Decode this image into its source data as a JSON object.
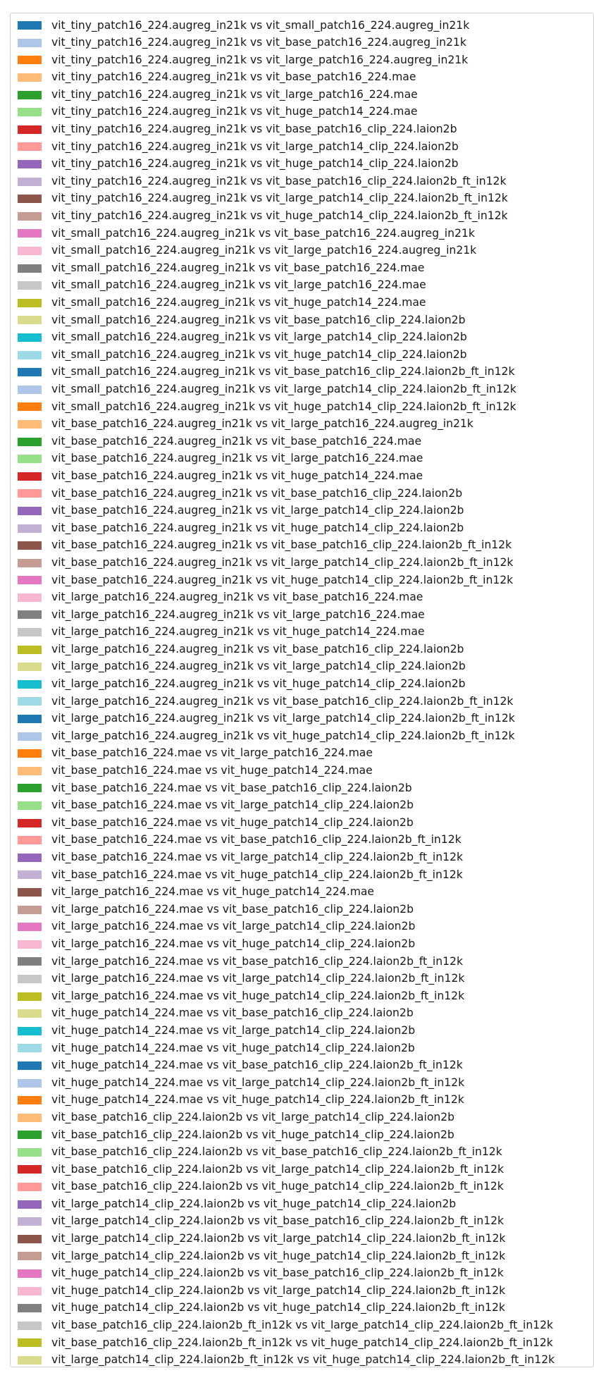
{
  "chart_data": {
    "type": "bar",
    "legend_placement": "top-left",
    "palette": [
      "#1f77b4",
      "#aec7e8",
      "#ff7f0e",
      "#ffbb78",
      "#2ca02c",
      "#98df8a",
      "#d62728",
      "#ff9896",
      "#9467bd",
      "#c5b0d5",
      "#8c564b",
      "#c49c94",
      "#e377c2",
      "#f7b6d2",
      "#7f7f7f",
      "#c7c7c7",
      "#bcbd22",
      "#dbdb8d",
      "#17becf",
      "#9edae5"
    ],
    "legend": [
      "vit_tiny_patch16_224.augreg_in21k vs vit_small_patch16_224.augreg_in21k",
      "vit_tiny_patch16_224.augreg_in21k vs vit_base_patch16_224.augreg_in21k",
      "vit_tiny_patch16_224.augreg_in21k vs vit_large_patch16_224.augreg_in21k",
      "vit_tiny_patch16_224.augreg_in21k vs vit_base_patch16_224.mae",
      "vit_tiny_patch16_224.augreg_in21k vs vit_large_patch16_224.mae",
      "vit_tiny_patch16_224.augreg_in21k vs vit_huge_patch14_224.mae",
      "vit_tiny_patch16_224.augreg_in21k vs vit_base_patch16_clip_224.laion2b",
      "vit_tiny_patch16_224.augreg_in21k vs vit_large_patch14_clip_224.laion2b",
      "vit_tiny_patch16_224.augreg_in21k vs vit_huge_patch14_clip_224.laion2b",
      "vit_tiny_patch16_224.augreg_in21k vs vit_base_patch16_clip_224.laion2b_ft_in12k",
      "vit_tiny_patch16_224.augreg_in21k vs vit_large_patch14_clip_224.laion2b_ft_in12k",
      "vit_tiny_patch16_224.augreg_in21k vs vit_huge_patch14_clip_224.laion2b_ft_in12k",
      "vit_small_patch16_224.augreg_in21k vs vit_base_patch16_224.augreg_in21k",
      "vit_small_patch16_224.augreg_in21k vs vit_large_patch16_224.augreg_in21k",
      "vit_small_patch16_224.augreg_in21k vs vit_base_patch16_224.mae",
      "vit_small_patch16_224.augreg_in21k vs vit_large_patch16_224.mae",
      "vit_small_patch16_224.augreg_in21k vs vit_huge_patch14_224.mae",
      "vit_small_patch16_224.augreg_in21k vs vit_base_patch16_clip_224.laion2b",
      "vit_small_patch16_224.augreg_in21k vs vit_large_patch14_clip_224.laion2b",
      "vit_small_patch16_224.augreg_in21k vs vit_huge_patch14_clip_224.laion2b",
      "vit_small_patch16_224.augreg_in21k vs vit_base_patch16_clip_224.laion2b_ft_in12k",
      "vit_small_patch16_224.augreg_in21k vs vit_large_patch14_clip_224.laion2b_ft_in12k",
      "vit_small_patch16_224.augreg_in21k vs vit_huge_patch14_clip_224.laion2b_ft_in12k",
      "vit_base_patch16_224.augreg_in21k vs vit_large_patch16_224.augreg_in21k",
      "vit_base_patch16_224.augreg_in21k vs vit_base_patch16_224.mae",
      "vit_base_patch16_224.augreg_in21k vs vit_large_patch16_224.mae",
      "vit_base_patch16_224.augreg_in21k vs vit_huge_patch14_224.mae",
      "vit_base_patch16_224.augreg_in21k vs vit_base_patch16_clip_224.laion2b",
      "vit_base_patch16_224.augreg_in21k vs vit_large_patch14_clip_224.laion2b",
      "vit_base_patch16_224.augreg_in21k vs vit_huge_patch14_clip_224.laion2b",
      "vit_base_patch16_224.augreg_in21k vs vit_base_patch16_clip_224.laion2b_ft_in12k",
      "vit_base_patch16_224.augreg_in21k vs vit_large_patch14_clip_224.laion2b_ft_in12k",
      "vit_base_patch16_224.augreg_in21k vs vit_huge_patch14_clip_224.laion2b_ft_in12k",
      "vit_large_patch16_224.augreg_in21k vs vit_base_patch16_224.mae",
      "vit_large_patch16_224.augreg_in21k vs vit_large_patch16_224.mae",
      "vit_large_patch16_224.augreg_in21k vs vit_huge_patch14_224.mae",
      "vit_large_patch16_224.augreg_in21k vs vit_base_patch16_clip_224.laion2b",
      "vit_large_patch16_224.augreg_in21k vs vit_large_patch14_clip_224.laion2b",
      "vit_large_patch16_224.augreg_in21k vs vit_huge_patch14_clip_224.laion2b",
      "vit_large_patch16_224.augreg_in21k vs vit_base_patch16_clip_224.laion2b_ft_in12k",
      "vit_large_patch16_224.augreg_in21k vs vit_large_patch14_clip_224.laion2b_ft_in12k",
      "vit_large_patch16_224.augreg_in21k vs vit_huge_patch14_clip_224.laion2b_ft_in12k",
      "vit_base_patch16_224.mae vs vit_large_patch16_224.mae",
      "vit_base_patch16_224.mae vs vit_huge_patch14_224.mae",
      "vit_base_patch16_224.mae vs vit_base_patch16_clip_224.laion2b",
      "vit_base_patch16_224.mae vs vit_large_patch14_clip_224.laion2b",
      "vit_base_patch16_224.mae vs vit_huge_patch14_clip_224.laion2b",
      "vit_base_patch16_224.mae vs vit_base_patch16_clip_224.laion2b_ft_in12k",
      "vit_base_patch16_224.mae vs vit_large_patch14_clip_224.laion2b_ft_in12k",
      "vit_base_patch16_224.mae vs vit_huge_patch14_clip_224.laion2b_ft_in12k",
      "vit_large_patch16_224.mae vs vit_huge_patch14_224.mae",
      "vit_large_patch16_224.mae vs vit_base_patch16_clip_224.laion2b",
      "vit_large_patch16_224.mae vs vit_large_patch14_clip_224.laion2b",
      "vit_large_patch16_224.mae vs vit_huge_patch14_clip_224.laion2b",
      "vit_large_patch16_224.mae vs vit_base_patch16_clip_224.laion2b_ft_in12k",
      "vit_large_patch16_224.mae vs vit_large_patch14_clip_224.laion2b_ft_in12k",
      "vit_large_patch16_224.mae vs vit_huge_patch14_clip_224.laion2b_ft_in12k",
      "vit_huge_patch14_224.mae vs vit_base_patch16_clip_224.laion2b",
      "vit_huge_patch14_224.mae vs vit_large_patch14_clip_224.laion2b",
      "vit_huge_patch14_224.mae vs vit_huge_patch14_clip_224.laion2b",
      "vit_huge_patch14_224.mae vs vit_base_patch16_clip_224.laion2b_ft_in12k",
      "vit_huge_patch14_224.mae vs vit_large_patch14_clip_224.laion2b_ft_in12k",
      "vit_huge_patch14_224.mae vs vit_huge_patch14_clip_224.laion2b_ft_in12k",
      "vit_base_patch16_clip_224.laion2b vs vit_large_patch14_clip_224.laion2b",
      "vit_base_patch16_clip_224.laion2b vs vit_huge_patch14_clip_224.laion2b",
      "vit_base_patch16_clip_224.laion2b vs vit_base_patch16_clip_224.laion2b_ft_in12k",
      "vit_base_patch16_clip_224.laion2b vs vit_large_patch14_clip_224.laion2b_ft_in12k",
      "vit_base_patch16_clip_224.laion2b vs vit_huge_patch14_clip_224.laion2b_ft_in12k",
      "vit_large_patch14_clip_224.laion2b vs vit_huge_patch14_clip_224.laion2b",
      "vit_large_patch14_clip_224.laion2b vs vit_base_patch16_clip_224.laion2b_ft_in12k",
      "vit_large_patch14_clip_224.laion2b vs vit_large_patch14_clip_224.laion2b_ft_in12k",
      "vit_large_patch14_clip_224.laion2b vs vit_huge_patch14_clip_224.laion2b_ft_in12k",
      "vit_huge_patch14_clip_224.laion2b vs vit_base_patch16_clip_224.laion2b_ft_in12k",
      "vit_huge_patch14_clip_224.laion2b vs vit_large_patch14_clip_224.laion2b_ft_in12k",
      "vit_huge_patch14_clip_224.laion2b vs vit_huge_patch14_clip_224.laion2b_ft_in12k",
      "vit_base_patch16_clip_224.laion2b_ft_in12k vs vit_large_patch14_clip_224.laion2b_ft_in12k",
      "vit_base_patch16_clip_224.laion2b_ft_in12k vs vit_huge_patch14_clip_224.laion2b_ft_in12k",
      "vit_large_patch14_clip_224.laion2b_ft_in12k vs vit_huge_patch14_clip_224.laion2b_ft_in12k"
    ]
  }
}
